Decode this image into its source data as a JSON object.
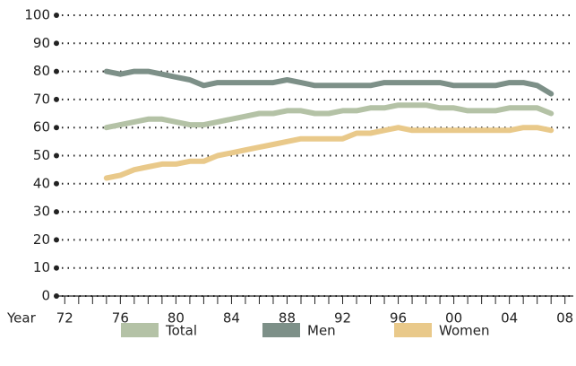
{
  "chart_data": {
    "type": "line",
    "x_label": "Year",
    "x": [
      1975,
      1976,
      1977,
      1978,
      1979,
      1980,
      1981,
      1982,
      1983,
      1984,
      1985,
      1986,
      1987,
      1988,
      1989,
      1990,
      1991,
      1992,
      1993,
      1994,
      1995,
      1996,
      1997,
      1998,
      1999,
      2000,
      2001,
      2002,
      2003,
      2004,
      2005,
      2006,
      2007
    ],
    "series": [
      {
        "name": "Total",
        "color": "#b4c2a6",
        "values": [
          60,
          61,
          62,
          63,
          63,
          62,
          61,
          61,
          62,
          63,
          64,
          65,
          65,
          66,
          66,
          65,
          65,
          66,
          66,
          67,
          67,
          68,
          68,
          68,
          67,
          67,
          66,
          66,
          66,
          67,
          67,
          67,
          65
        ]
      },
      {
        "name": "Men",
        "color": "#7d9088",
        "values": [
          80,
          79,
          80,
          80,
          79,
          78,
          77,
          75,
          76,
          76,
          76,
          76,
          76,
          77,
          76,
          75,
          75,
          75,
          75,
          75,
          76,
          76,
          76,
          76,
          76,
          75,
          75,
          75,
          75,
          76,
          76,
          75,
          72
        ]
      },
      {
        "name": "Women",
        "color": "#e9c98a",
        "values": [
          42,
          43,
          45,
          46,
          47,
          47,
          48,
          48,
          50,
          51,
          52,
          53,
          54,
          55,
          56,
          56,
          56,
          56,
          58,
          58,
          59,
          60,
          59,
          59,
          59,
          59,
          59,
          59,
          59,
          59,
          60,
          60,
          59
        ]
      }
    ],
    "xlim": [
      1971.4,
      2008.6
    ],
    "xticks": [
      {
        "value": 1972,
        "label": "72"
      },
      {
        "value": 1976,
        "label": "76"
      },
      {
        "value": 1980,
        "label": "80"
      },
      {
        "value": 1984,
        "label": "84"
      },
      {
        "value": 1988,
        "label": "88"
      },
      {
        "value": 1992,
        "label": "92"
      },
      {
        "value": 1996,
        "label": "96"
      },
      {
        "value": 2000,
        "label": "00"
      },
      {
        "value": 2004,
        "label": "04"
      },
      {
        "value": 2008,
        "label": "08"
      }
    ],
    "xminorticks": [
      1972,
      1973,
      1974,
      1975,
      1976,
      1977,
      1978,
      1979,
      1980,
      1981,
      1982,
      1983,
      1984,
      1985,
      1986,
      1987,
      1988,
      1989,
      1990,
      1991,
      1992,
      1993,
      1994,
      1995,
      1996,
      1997,
      1998,
      1999,
      2000,
      2001,
      2002,
      2003,
      2004,
      2005,
      2006,
      2007,
      2008
    ],
    "ylim": [
      0,
      100
    ],
    "yticks": [
      0,
      10,
      20,
      30,
      40,
      50,
      60,
      70,
      80,
      90,
      100
    ],
    "grid": true,
    "legend": "bottom"
  }
}
